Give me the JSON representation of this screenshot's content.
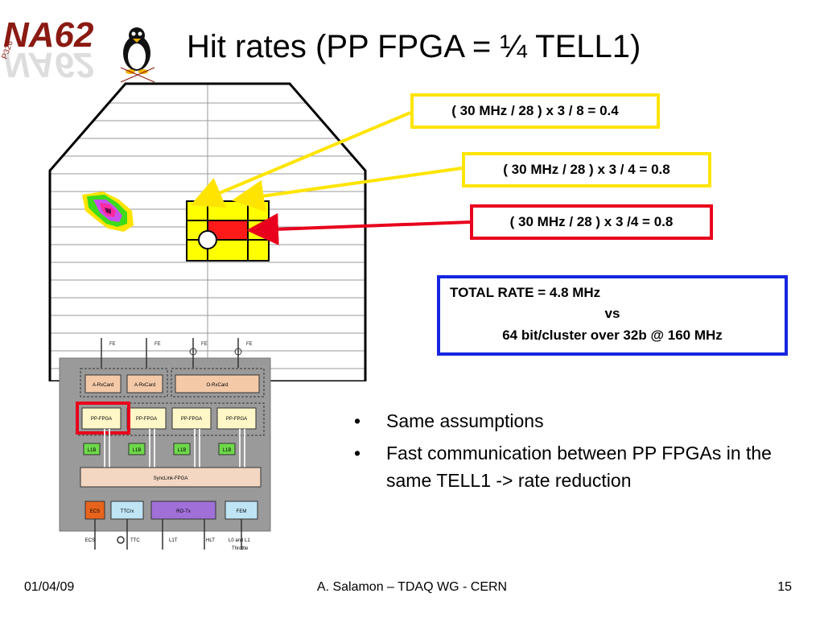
{
  "title": "Hit rates (PP FPGA = ¼ TELL1)",
  "logo": {
    "text": "NA62",
    "tag": "P326"
  },
  "callouts": [
    {
      "text": "( 30 MHz / 28 ) x 3 / 8 = 0.4",
      "color": "#ffe400"
    },
    {
      "text": "( 30 MHz / 28 ) x 3 / 4 = 0.8",
      "color": "#ffe400"
    },
    {
      "text": "( 30 MHz / 28 ) x 3 /4 = 0.8",
      "color": "#e8001c"
    }
  ],
  "total": {
    "line1": "TOTAL RATE = 4.8 MHz",
    "line2": "vs",
    "line3": "64 bit/cluster  over 32b @ 160 MHz",
    "color": "#1626e0"
  },
  "bullets": [
    "Same assumptions",
    "Fast communication between PP FPGAs in the same TELL1 -> rate reduction"
  ],
  "tell1": {
    "inputs": [
      "FE",
      "FE",
      "FE",
      "FE"
    ],
    "rxcards": [
      "A-RxCard",
      "A-RxCard",
      "O-RxCard"
    ],
    "ppfpgas": [
      "PP-FPGA",
      "PP-FPGA",
      "PP-FPGA",
      "PP-FPGA"
    ],
    "l1b": [
      "L1B",
      "L1B",
      "L1B",
      "L1B"
    ],
    "synclink": "SyncLink-FPGA",
    "bottom_blocks": [
      "ECS",
      "TTCrx",
      "RO-Tx",
      "FEM"
    ],
    "outputs": [
      "ECS",
      "TTC",
      "L1T",
      "HLT"
    ],
    "throttle": [
      "L0  and L1",
      "Throttle"
    ]
  },
  "footer": {
    "date": "01/04/09",
    "center": "A. Salamon – TDAQ WG - CERN",
    "page": "15"
  }
}
